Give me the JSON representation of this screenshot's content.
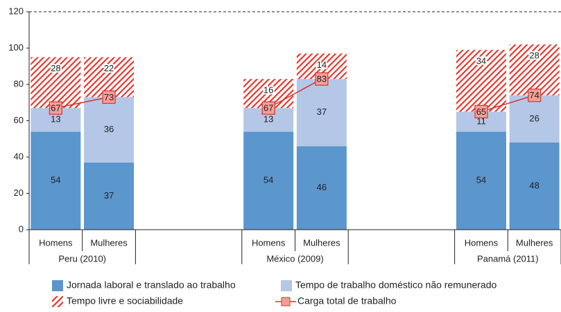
{
  "chart_data": {
    "type": "bar",
    "groups": [
      "Peru (2010)",
      "México (2009)",
      "Panamá (2011)"
    ],
    "categories": [
      "Homens",
      "Mulheres",
      "Homens",
      "Mulheres",
      "Homens",
      "Mulheres"
    ],
    "stacked": true,
    "series": [
      {
        "name": "Jornada laboral e translado ao trabalho",
        "color": "#5b96cd",
        "values": [
          54,
          37,
          54,
          46,
          54,
          48
        ]
      },
      {
        "name": "Tempo de trabalho doméstico não remunerado",
        "color": "#b4c7e7",
        "values": [
          13,
          36,
          13,
          37,
          11,
          26
        ]
      },
      {
        "name": "Tempo livre e sociabilidade",
        "color": "#e8382f",
        "pattern": "hatch",
        "values": [
          28,
          22,
          16,
          14,
          34,
          28
        ]
      },
      {
        "name": "Carga total de trabalho",
        "type": "line",
        "color": "#d9302a",
        "values": [
          67,
          73,
          67,
          83,
          65,
          74
        ]
      }
    ],
    "ylim": [
      0,
      120
    ],
    "yticks": [
      0,
      20,
      40,
      60,
      80,
      100,
      120
    ],
    "grid": false
  }
}
